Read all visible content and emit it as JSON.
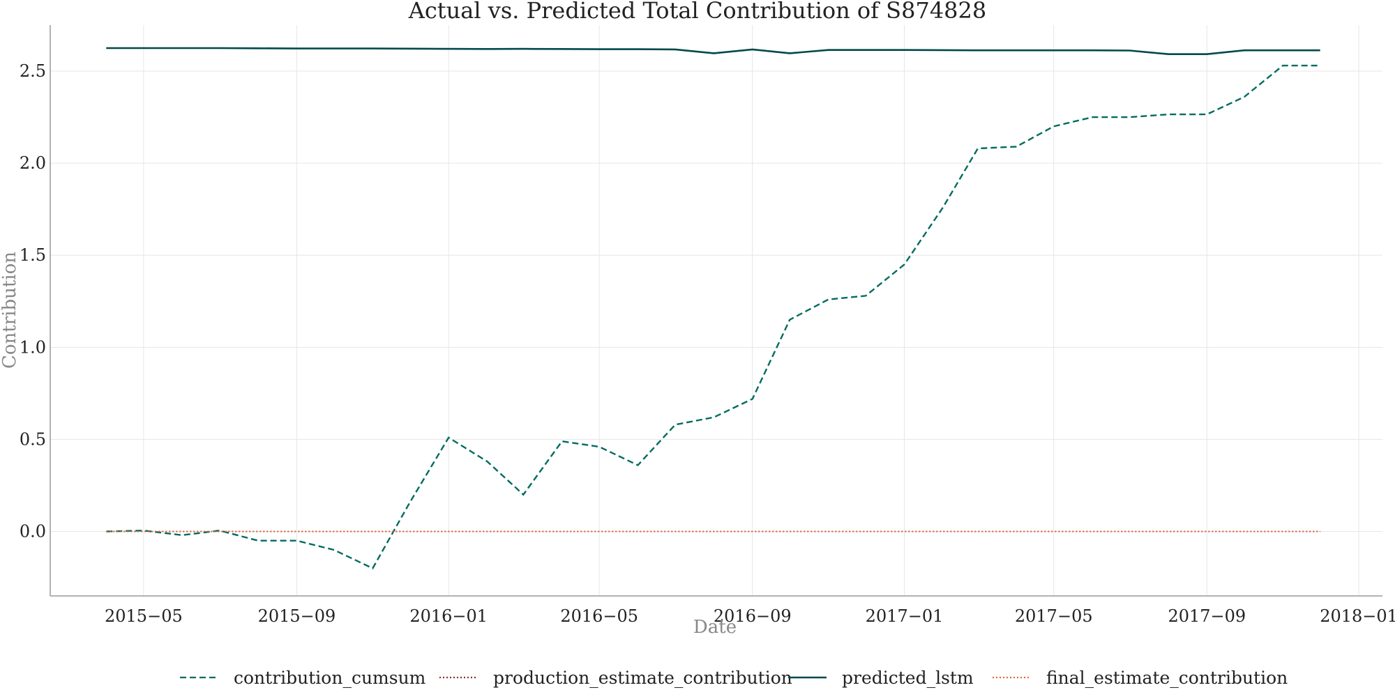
{
  "chart_data": {
    "type": "line",
    "title": "Actual vs. Predicted Total Contribution of S874828",
    "xlabel": "Date",
    "ylabel": "Contribution",
    "xlim": [
      "2015-02-15",
      "2018-01-20"
    ],
    "ylim": [
      -0.35,
      2.75
    ],
    "x_ticks": [
      "2015-05",
      "2015-09",
      "2016-01",
      "2016-05",
      "2016-09",
      "2017-01",
      "2017-05",
      "2017-09",
      "2018-01"
    ],
    "y_ticks": [
      "0.0",
      "0.5",
      "1.0",
      "1.5",
      "2.0",
      "2.5"
    ],
    "grid": true,
    "legend_position": "bottom",
    "x": [
      "2015-04-01",
      "2015-05-01",
      "2015-06-01",
      "2015-07-01",
      "2015-08-01",
      "2015-09-01",
      "2015-10-01",
      "2015-11-01",
      "2015-12-01",
      "2016-01-01",
      "2016-02-01",
      "2016-03-01",
      "2016-04-01",
      "2016-05-01",
      "2016-06-01",
      "2016-07-01",
      "2016-08-01",
      "2016-09-01",
      "2016-10-01",
      "2016-11-01",
      "2016-12-01",
      "2017-01-01",
      "2017-02-01",
      "2017-03-01",
      "2017-04-01",
      "2017-05-01",
      "2017-06-01",
      "2017-07-01",
      "2017-08-01",
      "2017-09-01",
      "2017-10-01",
      "2017-11-01",
      "2017-12-01"
    ],
    "series": [
      {
        "name": "contribution_cumsum",
        "color": "#006b5f",
        "style": "dashed",
        "values": [
          0.0,
          0.005,
          -0.02,
          0.005,
          -0.05,
          -0.05,
          -0.1,
          -0.2,
          0.16,
          0.51,
          0.38,
          0.2,
          0.49,
          0.46,
          0.36,
          0.58,
          0.62,
          0.72,
          1.15,
          1.26,
          1.28,
          1.45,
          1.76,
          2.08,
          2.09,
          2.2,
          2.25,
          2.25,
          2.265,
          2.265,
          2.36,
          2.53,
          2.53
        ]
      },
      {
        "name": "production_estimate_contribution",
        "color": "#8b2e2e",
        "style": "dotted",
        "values": [
          0,
          0,
          0,
          0,
          0,
          0,
          0,
          0,
          0,
          0,
          0,
          0,
          0,
          0,
          0,
          0,
          0,
          0,
          0,
          0,
          0,
          0,
          0,
          0,
          0,
          0,
          0,
          0,
          0,
          0,
          0,
          0,
          0
        ]
      },
      {
        "name": "predicted_lstm",
        "color": "#00494a",
        "style": "solid",
        "values": [
          2.625,
          2.625,
          2.625,
          2.625,
          2.624,
          2.623,
          2.623,
          2.623,
          2.622,
          2.621,
          2.62,
          2.621,
          2.62,
          2.619,
          2.619,
          2.618,
          2.597,
          2.618,
          2.597,
          2.615,
          2.615,
          2.615,
          2.614,
          2.613,
          2.613,
          2.613,
          2.613,
          2.612,
          2.592,
          2.592,
          2.613,
          2.613,
          2.613
        ]
      },
      {
        "name": "final_estimate_contribution",
        "color": "#e0673a",
        "style": "dotted",
        "values": [
          0,
          0,
          0,
          0,
          0,
          0,
          0,
          0,
          0,
          0,
          0,
          0,
          0,
          0,
          0,
          0,
          0,
          0,
          0,
          0,
          0,
          0,
          0,
          0,
          0,
          0,
          0,
          0,
          0,
          0,
          0,
          0,
          0
        ]
      }
    ]
  }
}
